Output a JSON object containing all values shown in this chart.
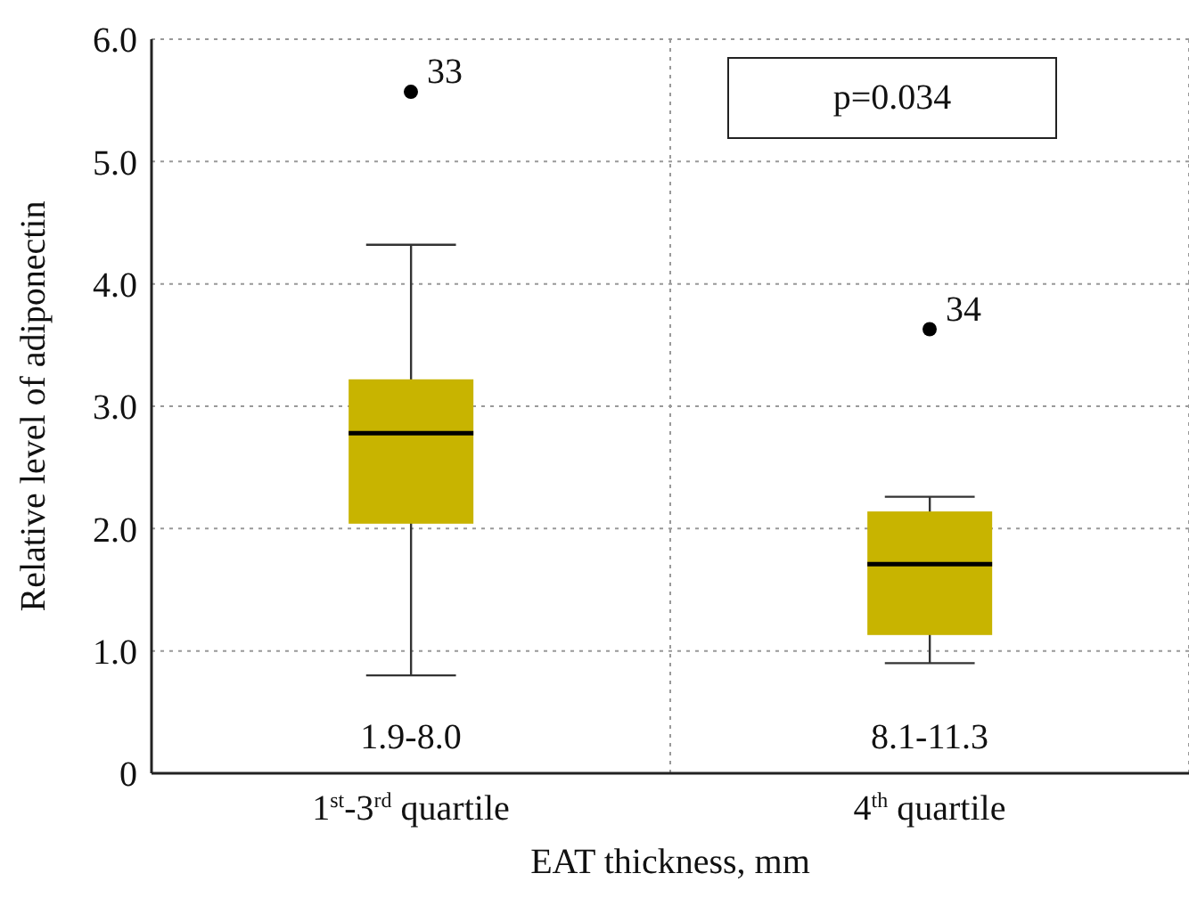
{
  "chart_data": {
    "type": "box",
    "xlabel": "EAT thickness, mm",
    "ylabel": "Relative level of adiponectin",
    "categories": [
      "1$^{st}$-3$^{rd}$ quartile",
      "4$^{th}$ quartile"
    ],
    "boxes": [
      {
        "low": 0.8,
        "q1": 2.04,
        "median": 2.78,
        "q3": 3.22,
        "high": 4.32,
        "outliers": [
          5.57
        ]
      },
      {
        "low": 0.9,
        "q1": 1.13,
        "median": 1.71,
        "q3": 2.14,
        "high": 2.26,
        "outliers": [
          3.63
        ]
      }
    ],
    "color": "#c8b400",
    "ylim": [
      0,
      6
    ],
    "yticks": [
      0,
      {
        "value": 1,
        "label": "1.0"
      },
      {
        "value": 2,
        "label": "2.0"
      },
      {
        "value": 3,
        "label": "3.0"
      },
      {
        "value": 4,
        "label": "4.0"
      },
      {
        "value": 5,
        "label": "5.0"
      },
      {
        "value": 6,
        "label": "6.0"
      }
    ],
    "grid": true,
    "annotations": [
      "33",
      "34",
      "1.9-8.0",
      "8.1-11.3",
      "p=0.034"
    ]
  }
}
